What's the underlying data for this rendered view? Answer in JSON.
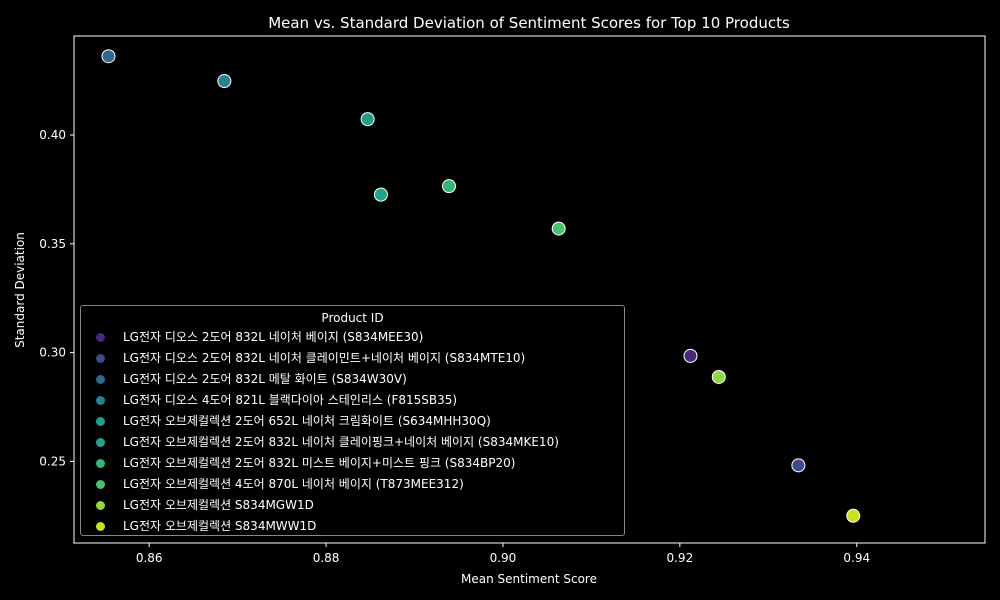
{
  "chart_data": {
    "type": "scatter",
    "title": "Mean vs. Standard Deviation of Sentiment Scores for Top 10 Products",
    "xlabel": "Mean Sentiment Score",
    "ylabel": "Standard Deviation",
    "xlim": [
      0.8515,
      0.9545
    ],
    "ylim": [
      0.2125,
      0.4455
    ],
    "xticks": [
      "0.86",
      "0.88",
      "0.90",
      "0.92",
      "0.94"
    ],
    "yticks": [
      "0.25",
      "0.30",
      "0.35",
      "0.40"
    ],
    "legend_title": "Product ID",
    "legend_position": "lower-left",
    "grid": false,
    "series": [
      {
        "name": "LG전자 디오스 2도어 832L 네이처 베이지 (S834MEE30)",
        "color": "#482878",
        "x": 0.9212,
        "y": 0.2985
      },
      {
        "name": "LG전자 디오스 2도어 832L 네이처 클레이민트+네이처 베이지 (S834MTE10)",
        "color": "#3e4989",
        "x": 0.9334,
        "y": 0.2482
      },
      {
        "name": "LG전자 디오스 2도어 832L 메탈 화이트 (S834W30V)",
        "color": "#31688e",
        "x": 0.8554,
        "y": 0.4362
      },
      {
        "name": "LG전자 디오스 4도어 821L 블랙다이아 스테인리스 (F815SB35)",
        "color": "#26828e",
        "x": 0.8685,
        "y": 0.4248
      },
      {
        "name": "LG전자 오브제컬렉션 2도어 652L 네이처 크림화이트 (S634MHH30Q)",
        "color": "#1f9e89",
        "x": 0.8847,
        "y": 0.4073
      },
      {
        "name": "LG전자 오브제컬렉션 2도어 832L 네이처 클레이핑크+네이처 베이지 (S834MKE10)",
        "color": "#20a386",
        "x": 0.8862,
        "y": 0.3726
      },
      {
        "name": "LG전자 오브제컬렉션 2도어 832L 미스트 베이지+미스트 핑크 (S834BP20)",
        "color": "#35b779",
        "x": 0.8939,
        "y": 0.3765
      },
      {
        "name": "LG전자 오브제컬렉션 4도어 870L 네이처 베이지 (T873MEE312)",
        "color": "#4ac16d",
        "x": 0.9063,
        "y": 0.357
      },
      {
        "name": "LG전자 오브제컬렉션 S834MGW1D",
        "color": "#90d743",
        "x": 0.9244,
        "y": 0.2888
      },
      {
        "name": "LG전자 오브제컬렉션 S834MWW1D",
        "color": "#c8e020",
        "x": 0.9396,
        "y": 0.225
      }
    ]
  }
}
